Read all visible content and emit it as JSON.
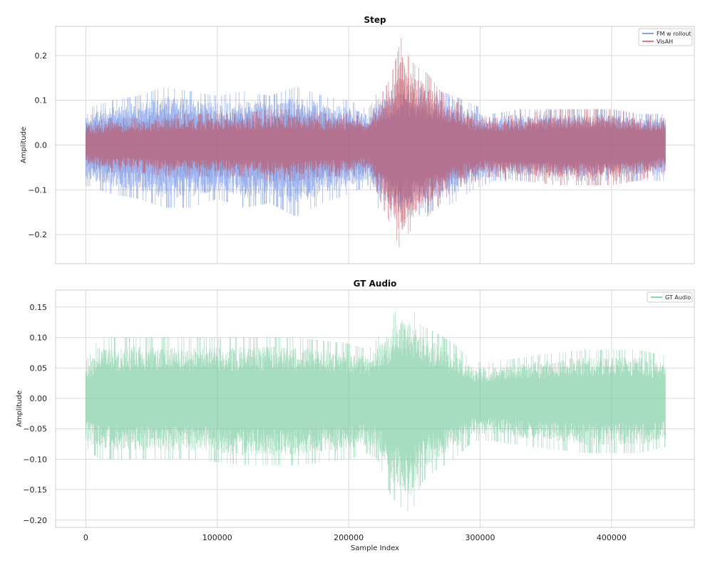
{
  "chart_data": [
    {
      "type": "line",
      "title": "Step",
      "xlabel": "",
      "ylabel": "Amplitude",
      "xlim": [
        -23000,
        463000
      ],
      "ylim": [
        -0.265,
        0.265
      ],
      "x_ticks": [
        0,
        100000,
        200000,
        300000,
        400000
      ],
      "y_ticks": [
        -0.2,
        -0.1,
        0.0,
        0.1,
        0.2
      ],
      "y_tick_labels": [
        "−0.2",
        "−0.1",
        "0.0",
        "0.1",
        "0.2"
      ],
      "grid": true,
      "legend": "top-right",
      "sample_count": 441000,
      "series": [
        {
          "name": "FM w rollout",
          "color": "#5a7fe0",
          "envelope_x": [
            0,
            20000,
            40000,
            60000,
            80000,
            100000,
            120000,
            140000,
            160000,
            180000,
            200000,
            215000,
            222000,
            232000,
            240000,
            250000,
            260000,
            270000,
            280000,
            295000,
            310000,
            330000,
            360000,
            380000,
            400000,
            420000,
            441000
          ],
          "envelope_upper": [
            0.08,
            0.1,
            0.11,
            0.13,
            0.12,
            0.11,
            0.12,
            0.11,
            0.13,
            0.11,
            0.1,
            0.08,
            0.12,
            0.12,
            0.14,
            0.13,
            0.12,
            0.12,
            0.11,
            0.09,
            0.07,
            0.08,
            0.08,
            0.08,
            0.08,
            0.07,
            0.07
          ],
          "envelope_lower": [
            -0.09,
            -0.11,
            -0.12,
            -0.14,
            -0.14,
            -0.12,
            -0.14,
            -0.13,
            -0.16,
            -0.13,
            -0.11,
            -0.09,
            -0.14,
            -0.16,
            -0.17,
            -0.16,
            -0.15,
            -0.14,
            -0.13,
            -0.1,
            -0.08,
            -0.08,
            -0.08,
            -0.08,
            -0.08,
            -0.08,
            -0.08
          ]
        },
        {
          "name": "VisAH",
          "color": "#c0505e",
          "envelope_x": [
            0,
            20000,
            40000,
            60000,
            80000,
            100000,
            120000,
            140000,
            160000,
            180000,
            200000,
            215000,
            222000,
            232000,
            240000,
            245000,
            250000,
            260000,
            270000,
            280000,
            295000,
            310000,
            330000,
            360000,
            380000,
            400000,
            420000,
            441000
          ],
          "envelope_upper": [
            0.05,
            0.06,
            0.06,
            0.07,
            0.07,
            0.07,
            0.07,
            0.08,
            0.08,
            0.07,
            0.07,
            0.06,
            0.1,
            0.15,
            0.24,
            0.2,
            0.18,
            0.16,
            0.12,
            0.1,
            0.07,
            0.06,
            0.07,
            0.08,
            0.08,
            0.08,
            0.07,
            0.06
          ],
          "envelope_lower": [
            -0.05,
            -0.06,
            -0.06,
            -0.07,
            -0.07,
            -0.07,
            -0.07,
            -0.08,
            -0.08,
            -0.07,
            -0.07,
            -0.06,
            -0.11,
            -0.18,
            -0.24,
            -0.2,
            -0.18,
            -0.16,
            -0.13,
            -0.1,
            -0.08,
            -0.07,
            -0.08,
            -0.09,
            -0.09,
            -0.09,
            -0.08,
            -0.06
          ]
        }
      ]
    },
    {
      "type": "line",
      "title": "GT Audio",
      "xlabel": "Sample Index",
      "ylabel": "Amplitude",
      "xlim": [
        -23000,
        463000
      ],
      "ylim": [
        -0.212,
        0.178
      ],
      "x_ticks": [
        0,
        100000,
        200000,
        300000,
        400000
      ],
      "y_ticks": [
        -0.2,
        -0.15,
        -0.1,
        -0.05,
        0.0,
        0.05,
        0.1,
        0.15
      ],
      "y_tick_labels": [
        "−0.20",
        "−0.15",
        "−0.10",
        "−0.05",
        "0.00",
        "0.05",
        "0.10",
        "0.15"
      ],
      "grid": true,
      "legend": "top-right",
      "sample_count": 441000,
      "series": [
        {
          "name": "GT Audio",
          "color": "#6cc795",
          "envelope_x": [
            0,
            10000,
            40000,
            80000,
            120000,
            160000,
            200000,
            215000,
            222000,
            232000,
            240000,
            248000,
            255000,
            265000,
            280000,
            295000,
            310000,
            340000,
            380000,
            420000,
            441000
          ],
          "envelope_upper": [
            0.06,
            0.1,
            0.1,
            0.1,
            0.1,
            0.1,
            0.09,
            0.08,
            0.1,
            0.13,
            0.16,
            0.15,
            0.12,
            0.11,
            0.09,
            0.06,
            0.06,
            0.07,
            0.08,
            0.08,
            0.07
          ],
          "envelope_lower": [
            -0.08,
            -0.1,
            -0.1,
            -0.1,
            -0.11,
            -0.11,
            -0.1,
            -0.09,
            -0.1,
            -0.16,
            -0.18,
            -0.19,
            -0.14,
            -0.12,
            -0.1,
            -0.07,
            -0.07,
            -0.08,
            -0.09,
            -0.09,
            -0.08
          ]
        }
      ]
    }
  ]
}
